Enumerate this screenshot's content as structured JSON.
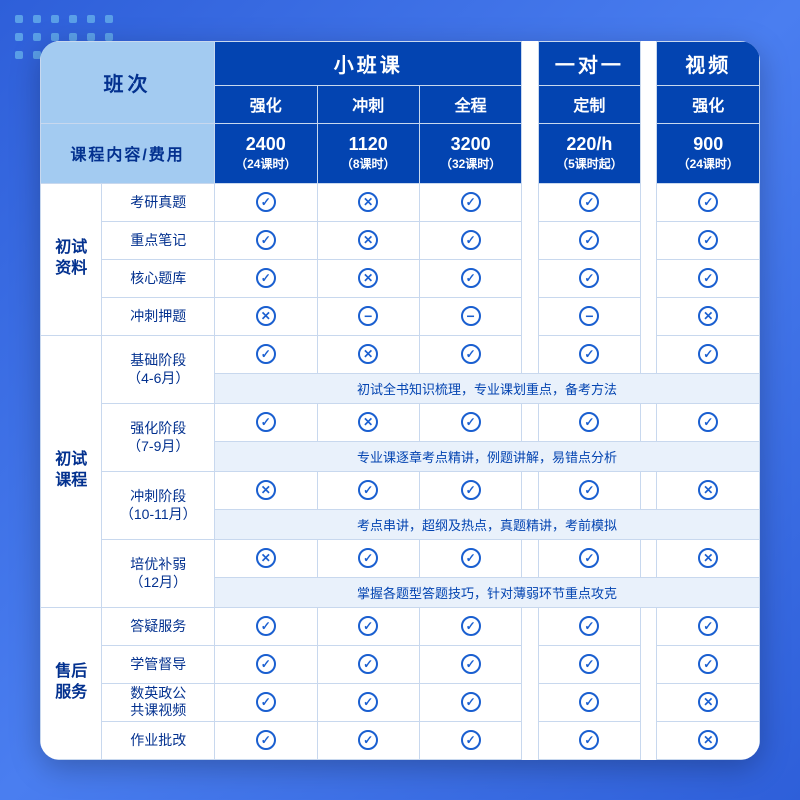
{
  "colors": {
    "header_bg": "#0344b1",
    "corner_bg": "#a3cbf1",
    "corner_text": "#03318f",
    "icon_color": "#1a5fd0",
    "border": "#c8d8ee",
    "desc_text": "#0344b1",
    "panel_bg": "#ffffff",
    "page_bg_gradient": [
      "#2e5fd9",
      "#4a7ef0",
      "#2e5fd9"
    ]
  },
  "header": {
    "corner": "班次",
    "groups": [
      {
        "label": "小班课",
        "span": 3
      },
      {
        "label": "一对一",
        "span": 1
      },
      {
        "label": "视频",
        "span": 1
      }
    ],
    "subs": [
      "强化",
      "冲刺",
      "全程",
      "定制",
      "强化"
    ],
    "price_label": "课程内容/费用",
    "prices": [
      {
        "num": "2400",
        "note": "（24课时）"
      },
      {
        "num": "1120",
        "note": "（8课时）"
      },
      {
        "num": "3200",
        "note": "（32课时）"
      },
      {
        "num": "220/h",
        "note": "（5课时起）"
      },
      {
        "num": "900",
        "note": "（24课时）"
      }
    ]
  },
  "sections": [
    {
      "cat": "初试\n资料",
      "rows": [
        {
          "label": "考研真题",
          "vals": [
            "check",
            "cross",
            "check",
            "check",
            "check"
          ]
        },
        {
          "label": "重点笔记",
          "vals": [
            "check",
            "cross",
            "check",
            "check",
            "check"
          ]
        },
        {
          "label": "核心题库",
          "vals": [
            "check",
            "cross",
            "check",
            "check",
            "check"
          ]
        },
        {
          "label": "冲刺押题",
          "vals": [
            "cross",
            "minus",
            "minus",
            "minus",
            "cross"
          ]
        }
      ]
    },
    {
      "cat": "初试\n课程",
      "phases": [
        {
          "label": "基础阶段\n（4-6月）",
          "vals": [
            "check",
            "cross",
            "check",
            "check",
            "check"
          ],
          "desc": "初试全书知识梳理，专业课划重点，备考方法"
        },
        {
          "label": "强化阶段\n（7-9月）",
          "vals": [
            "check",
            "cross",
            "check",
            "check",
            "check"
          ],
          "desc": "专业课逐章考点精讲，例题讲解，易错点分析"
        },
        {
          "label": "冲刺阶段\n（10-11月）",
          "vals": [
            "cross",
            "check",
            "check",
            "check",
            "cross"
          ],
          "desc": "考点串讲，超纲及热点，真题精讲，考前模拟"
        },
        {
          "label": "培优补弱\n（12月）",
          "vals": [
            "cross",
            "check",
            "check",
            "check",
            "cross"
          ],
          "desc": "掌握各题型答题技巧，针对薄弱环节重点攻克"
        }
      ]
    },
    {
      "cat": "售后\n服务",
      "rows": [
        {
          "label": "答疑服务",
          "vals": [
            "check",
            "check",
            "check",
            "check",
            "check"
          ]
        },
        {
          "label": "学管督导",
          "vals": [
            "check",
            "check",
            "check",
            "check",
            "check"
          ]
        },
        {
          "label": "数英政公\n共课视频",
          "vals": [
            "check",
            "check",
            "check",
            "check",
            "cross"
          ]
        },
        {
          "label": "作业批改",
          "vals": [
            "check",
            "check",
            "check",
            "check",
            "cross"
          ]
        }
      ]
    }
  ]
}
